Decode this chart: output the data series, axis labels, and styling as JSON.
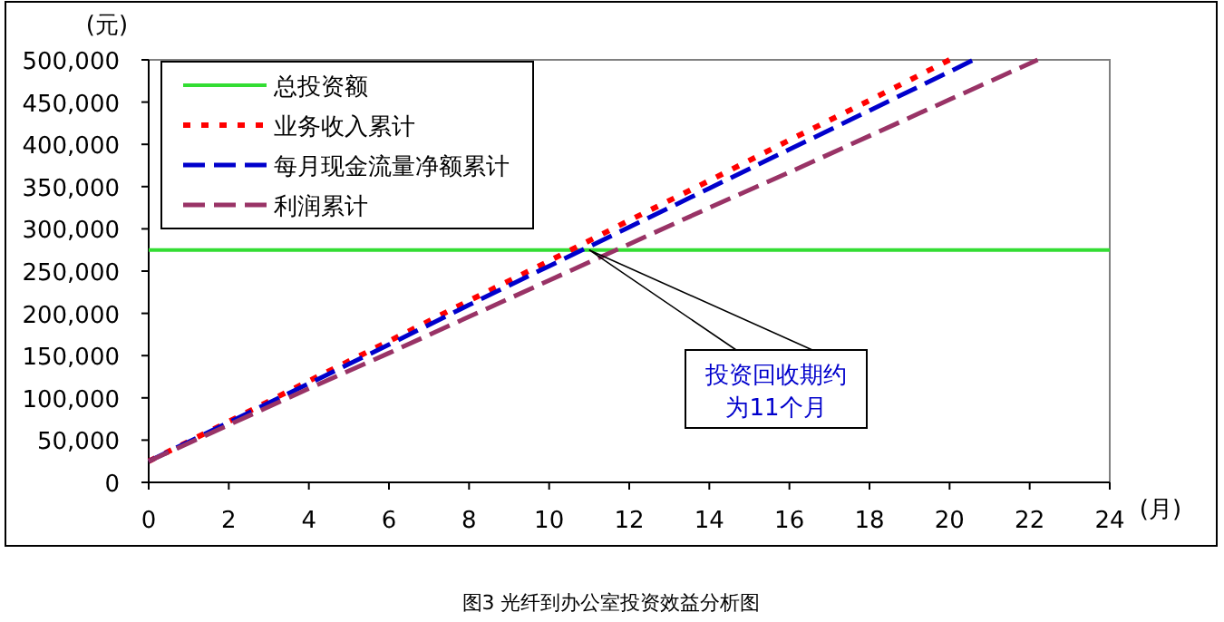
{
  "chart_data": {
    "type": "line",
    "title": "图3 光纤到办公室投资效益分析图",
    "xlabel": "(月)",
    "ylabel": "(元)",
    "xlim": [
      0,
      24
    ],
    "xticks": [
      0,
      2,
      4,
      6,
      8,
      10,
      12,
      14,
      16,
      18,
      20,
      22,
      24
    ],
    "ylim": [
      0,
      500000
    ],
    "yticks": [
      {
        "value": 0,
        "label": "0"
      },
      {
        "value": 50000,
        "label": "50,000"
      },
      {
        "value": 100000,
        "label": "100,000"
      },
      {
        "value": 150000,
        "label": "150,000"
      },
      {
        "value": 200000,
        "label": "200,000"
      },
      {
        "value": 250000,
        "label": "250,000"
      },
      {
        "value": 300000,
        "label": "300,000"
      },
      {
        "value": 350000,
        "label": "350,000"
      },
      {
        "value": 400000,
        "label": "400,000"
      },
      {
        "value": 450000,
        "label": "450,000"
      },
      {
        "value": 500000,
        "label": "500,000"
      }
    ],
    "grid": false,
    "legend": "top left",
    "marker": "none",
    "series": [
      {
        "name": "总投资额",
        "color": "#33dd33",
        "line_style": "solid",
        "x": [
          0,
          24
        ],
        "values": [
          275000,
          275000
        ]
      },
      {
        "name": "业务收入累计",
        "color": "#ff0000",
        "line_style": "dotted",
        "x": [
          0,
          2,
          4,
          6,
          8,
          10,
          12,
          14,
          16,
          18,
          20
        ],
        "values": [
          25000,
          72000,
          120000,
          167000,
          215000,
          262000,
          310000,
          357000,
          405000,
          452000,
          500000
        ]
      },
      {
        "name": "每月现金流量净额累计",
        "color": "#0000cc",
        "line_style": "dashed",
        "x": [
          0,
          2,
          4,
          6,
          8,
          10,
          12,
          14,
          16,
          18,
          20,
          20.6
        ],
        "values": [
          25000,
          71000,
          117000,
          163000,
          210000,
          256000,
          302000,
          348000,
          394000,
          440000,
          486000,
          500000
        ]
      },
      {
        "name": "利润累计",
        "color": "#993366",
        "line_style": "dashed",
        "x": [
          0,
          2,
          4,
          6,
          8,
          10,
          12,
          14,
          16,
          18,
          20,
          22.2
        ],
        "values": [
          25000,
          68000,
          111000,
          153000,
          196000,
          239000,
          282000,
          325000,
          367000,
          410000,
          453000,
          500000
        ]
      }
    ],
    "annotations": [
      {
        "text": "投资回收期约为11个月",
        "x": 11,
        "y": 275000
      }
    ]
  }
}
